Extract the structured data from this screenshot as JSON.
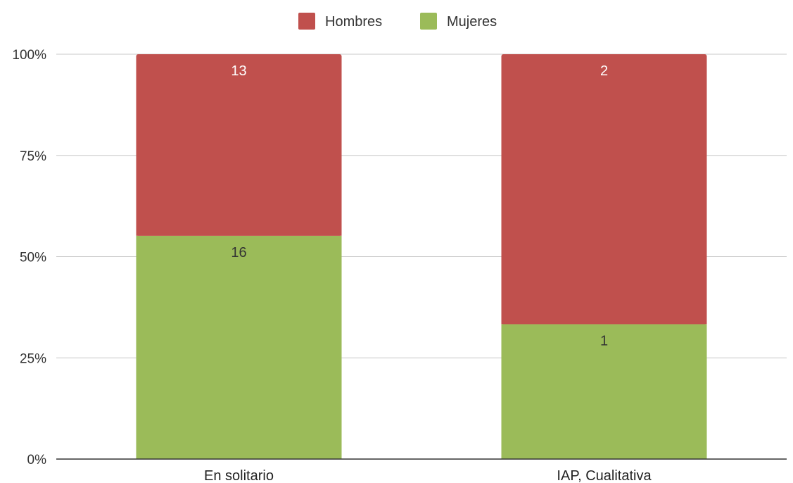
{
  "chart_data": {
    "type": "bar",
    "stacked": true,
    "normalized": "percent",
    "categories": [
      "En solitario",
      "IAP, Cualitativa"
    ],
    "series": [
      {
        "name": "Mujeres",
        "color": "#9bbb59",
        "values": [
          16,
          1
        ]
      },
      {
        "name": "Hombres",
        "color": "#c0504d",
        "values": [
          13,
          2
        ]
      }
    ],
    "yticks": [
      "0%",
      "25%",
      "50%",
      "75%",
      "100%"
    ],
    "ylim": [
      0,
      100
    ],
    "legend_position": "top-center",
    "legend_order": [
      "Hombres",
      "Mujeres"
    ],
    "grid": true,
    "data_labels": true
  }
}
